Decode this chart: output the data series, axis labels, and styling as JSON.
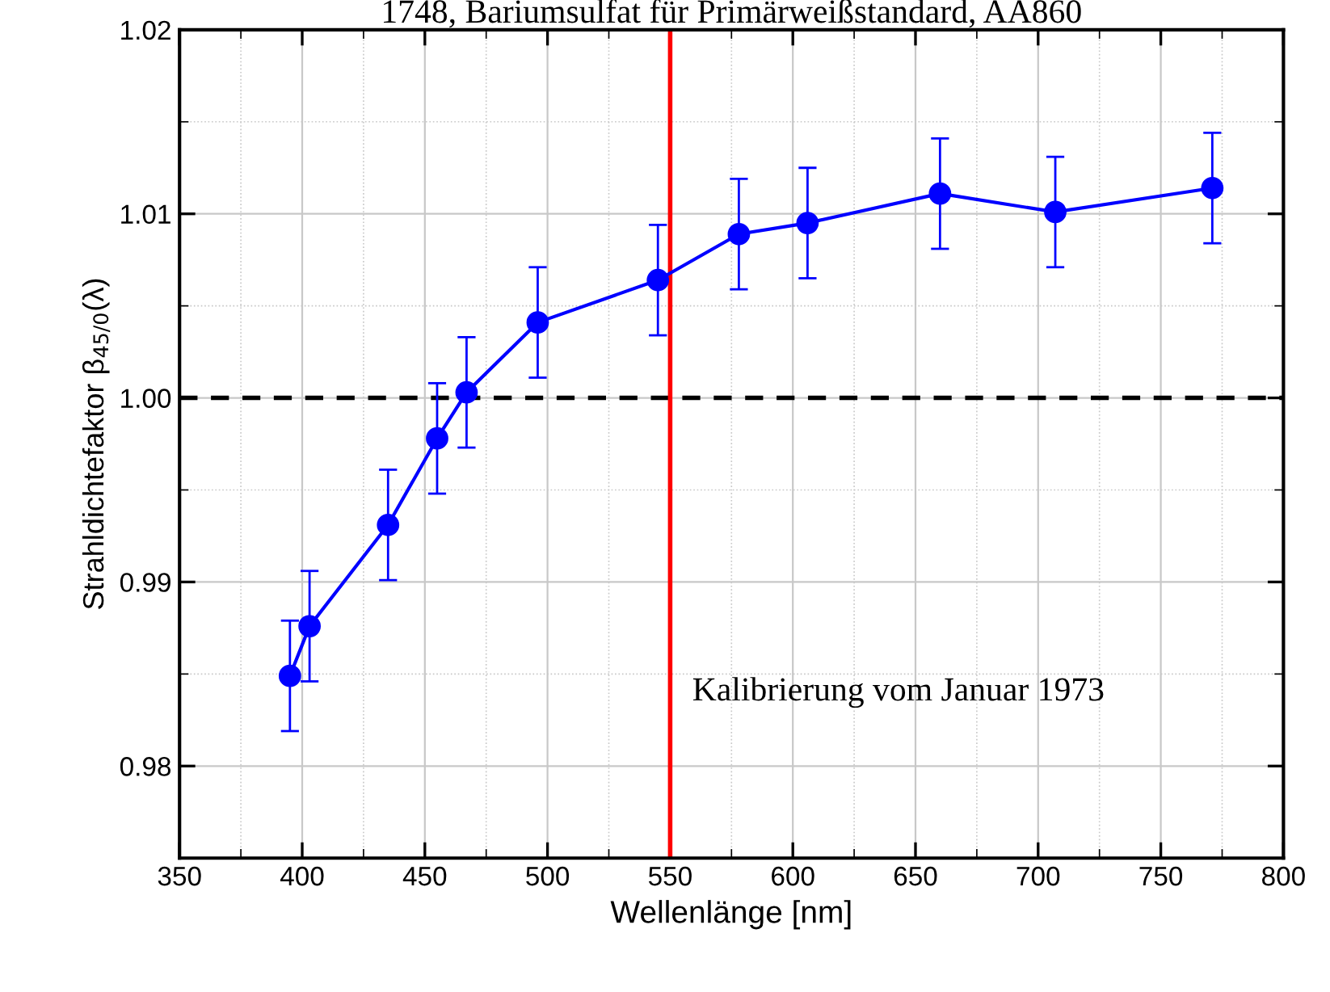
{
  "chart_data": {
    "type": "line",
    "title": "1748, Bariumsulfat für Primärweißstandard, AA860",
    "xlabel": "Wellenlänge [nm]",
    "ylabel": "Strahldichtefaktor β$_{45/0}$(λ)",
    "x": [
      395,
      403,
      435,
      455,
      467,
      496,
      545,
      578,
      606,
      660,
      707,
      771
    ],
    "series": [
      {
        "color": "#0000ff",
        "values": [
          0.9849,
          0.9876,
          0.9931,
          0.9978,
          1.0003,
          1.0041,
          1.0064,
          1.0089,
          1.0095,
          1.0111,
          1.0101,
          1.0114
        ],
        "errors": [
          0.003,
          0.003,
          0.003,
          0.003,
          0.003,
          0.003,
          0.003,
          0.003,
          0.003,
          0.003,
          0.003,
          0.003
        ]
      }
    ],
    "marker": "circle",
    "line_style": "solid",
    "grid": true,
    "xlim": [
      350,
      800
    ],
    "xticks": [
      350,
      400,
      450,
      500,
      550,
      600,
      650,
      700,
      750,
      800
    ],
    "ylim": [
      0.975,
      1.02
    ],
    "yticks": [
      0.98,
      0.99,
      {
        "value": 1.0,
        "label": "1.00"
      },
      1.01,
      1.02
    ],
    "ref_lines": [
      {
        "axis": "y",
        "value": 1.0,
        "color": "#000000",
        "line_style": "dashed"
      },
      {
        "axis": "x",
        "value": 550,
        "color": "#ff0000",
        "line_style": "solid",
        "label": "Kalibrierung vom Januar 1973"
      }
    ]
  }
}
